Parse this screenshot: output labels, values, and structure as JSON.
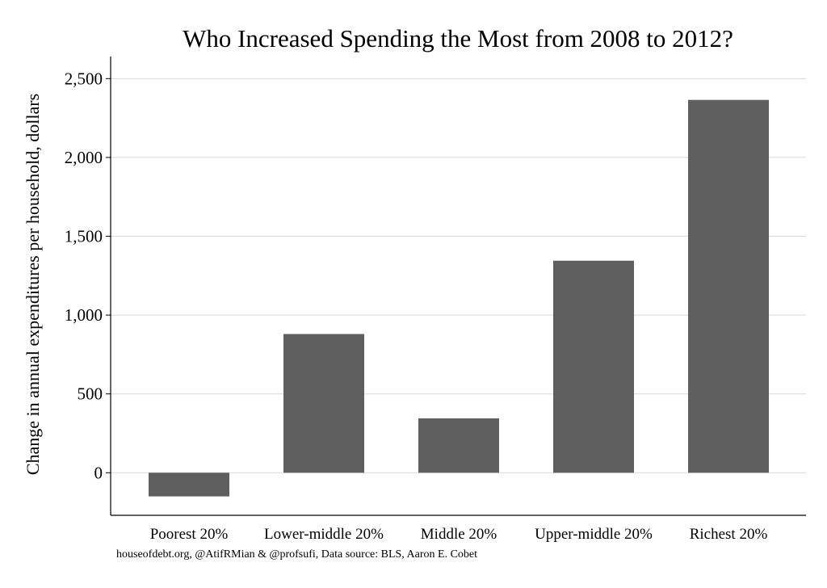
{
  "chart_data": {
    "type": "bar",
    "title": "Who Increased Spending the Most from 2008 to 2012?",
    "ylabel": "Change in annual expenditures per household, dollars",
    "xlabel": "",
    "categories": [
      "Poorest 20%",
      "Lower-middle 20%",
      "Middle 20%",
      "Upper-middle 20%",
      "Richest 20%"
    ],
    "values": [
      -150,
      880,
      345,
      1345,
      2365
    ],
    "ylim": [
      -270,
      2640
    ],
    "yticks": [
      0,
      500,
      1000,
      1500,
      2000,
      2500
    ],
    "ytick_labels": [
      "0",
      "500",
      "1,000",
      "1,500",
      "2,000",
      "2,500"
    ],
    "grid": true,
    "bar_color": "#5f5f5f",
    "source_note": "houseofdebt.org, @AtifRMian & @profsufi, Data source: BLS, Aaron E. Cobet"
  }
}
